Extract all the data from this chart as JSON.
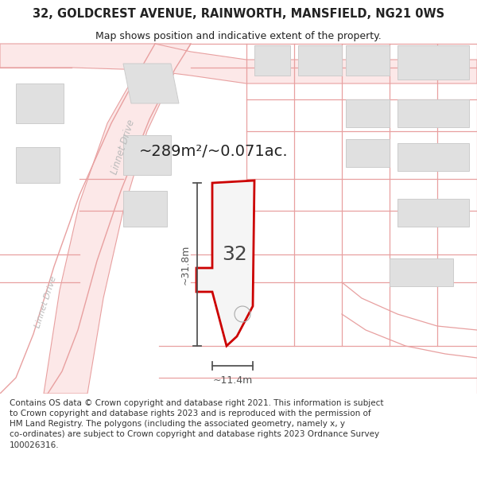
{
  "title": "32, GOLDCREST AVENUE, RAINWORTH, MANSFIELD, NG21 0WS",
  "subtitle": "Map shows position and indicative extent of the property.",
  "footer": "Contains OS data © Crown copyright and database right 2021. This information is subject to Crown copyright and database rights 2023 and is reproduced with the permission of HM Land Registry. The polygons (including the associated geometry, namely x, y co-ordinates) are subject to Crown copyright and database rights 2023 Ordnance Survey 100026316.",
  "area_label": "~289m²/~0.071ac.",
  "width_label": "~11.4m",
  "height_label": "~31.8m",
  "plot_number": "32",
  "bg_color": "#ffffff",
  "road_fill": "#fce8e8",
  "road_line": "#e8a0a0",
  "building_fill": "#e0e0e0",
  "building_edge": "#cccccc",
  "highlight_color": "#cc0000",
  "street_label_color": "#bbbbbb",
  "dim_line_color": "#555555",
  "text_color": "#222222",
  "footer_color": "#333333"
}
